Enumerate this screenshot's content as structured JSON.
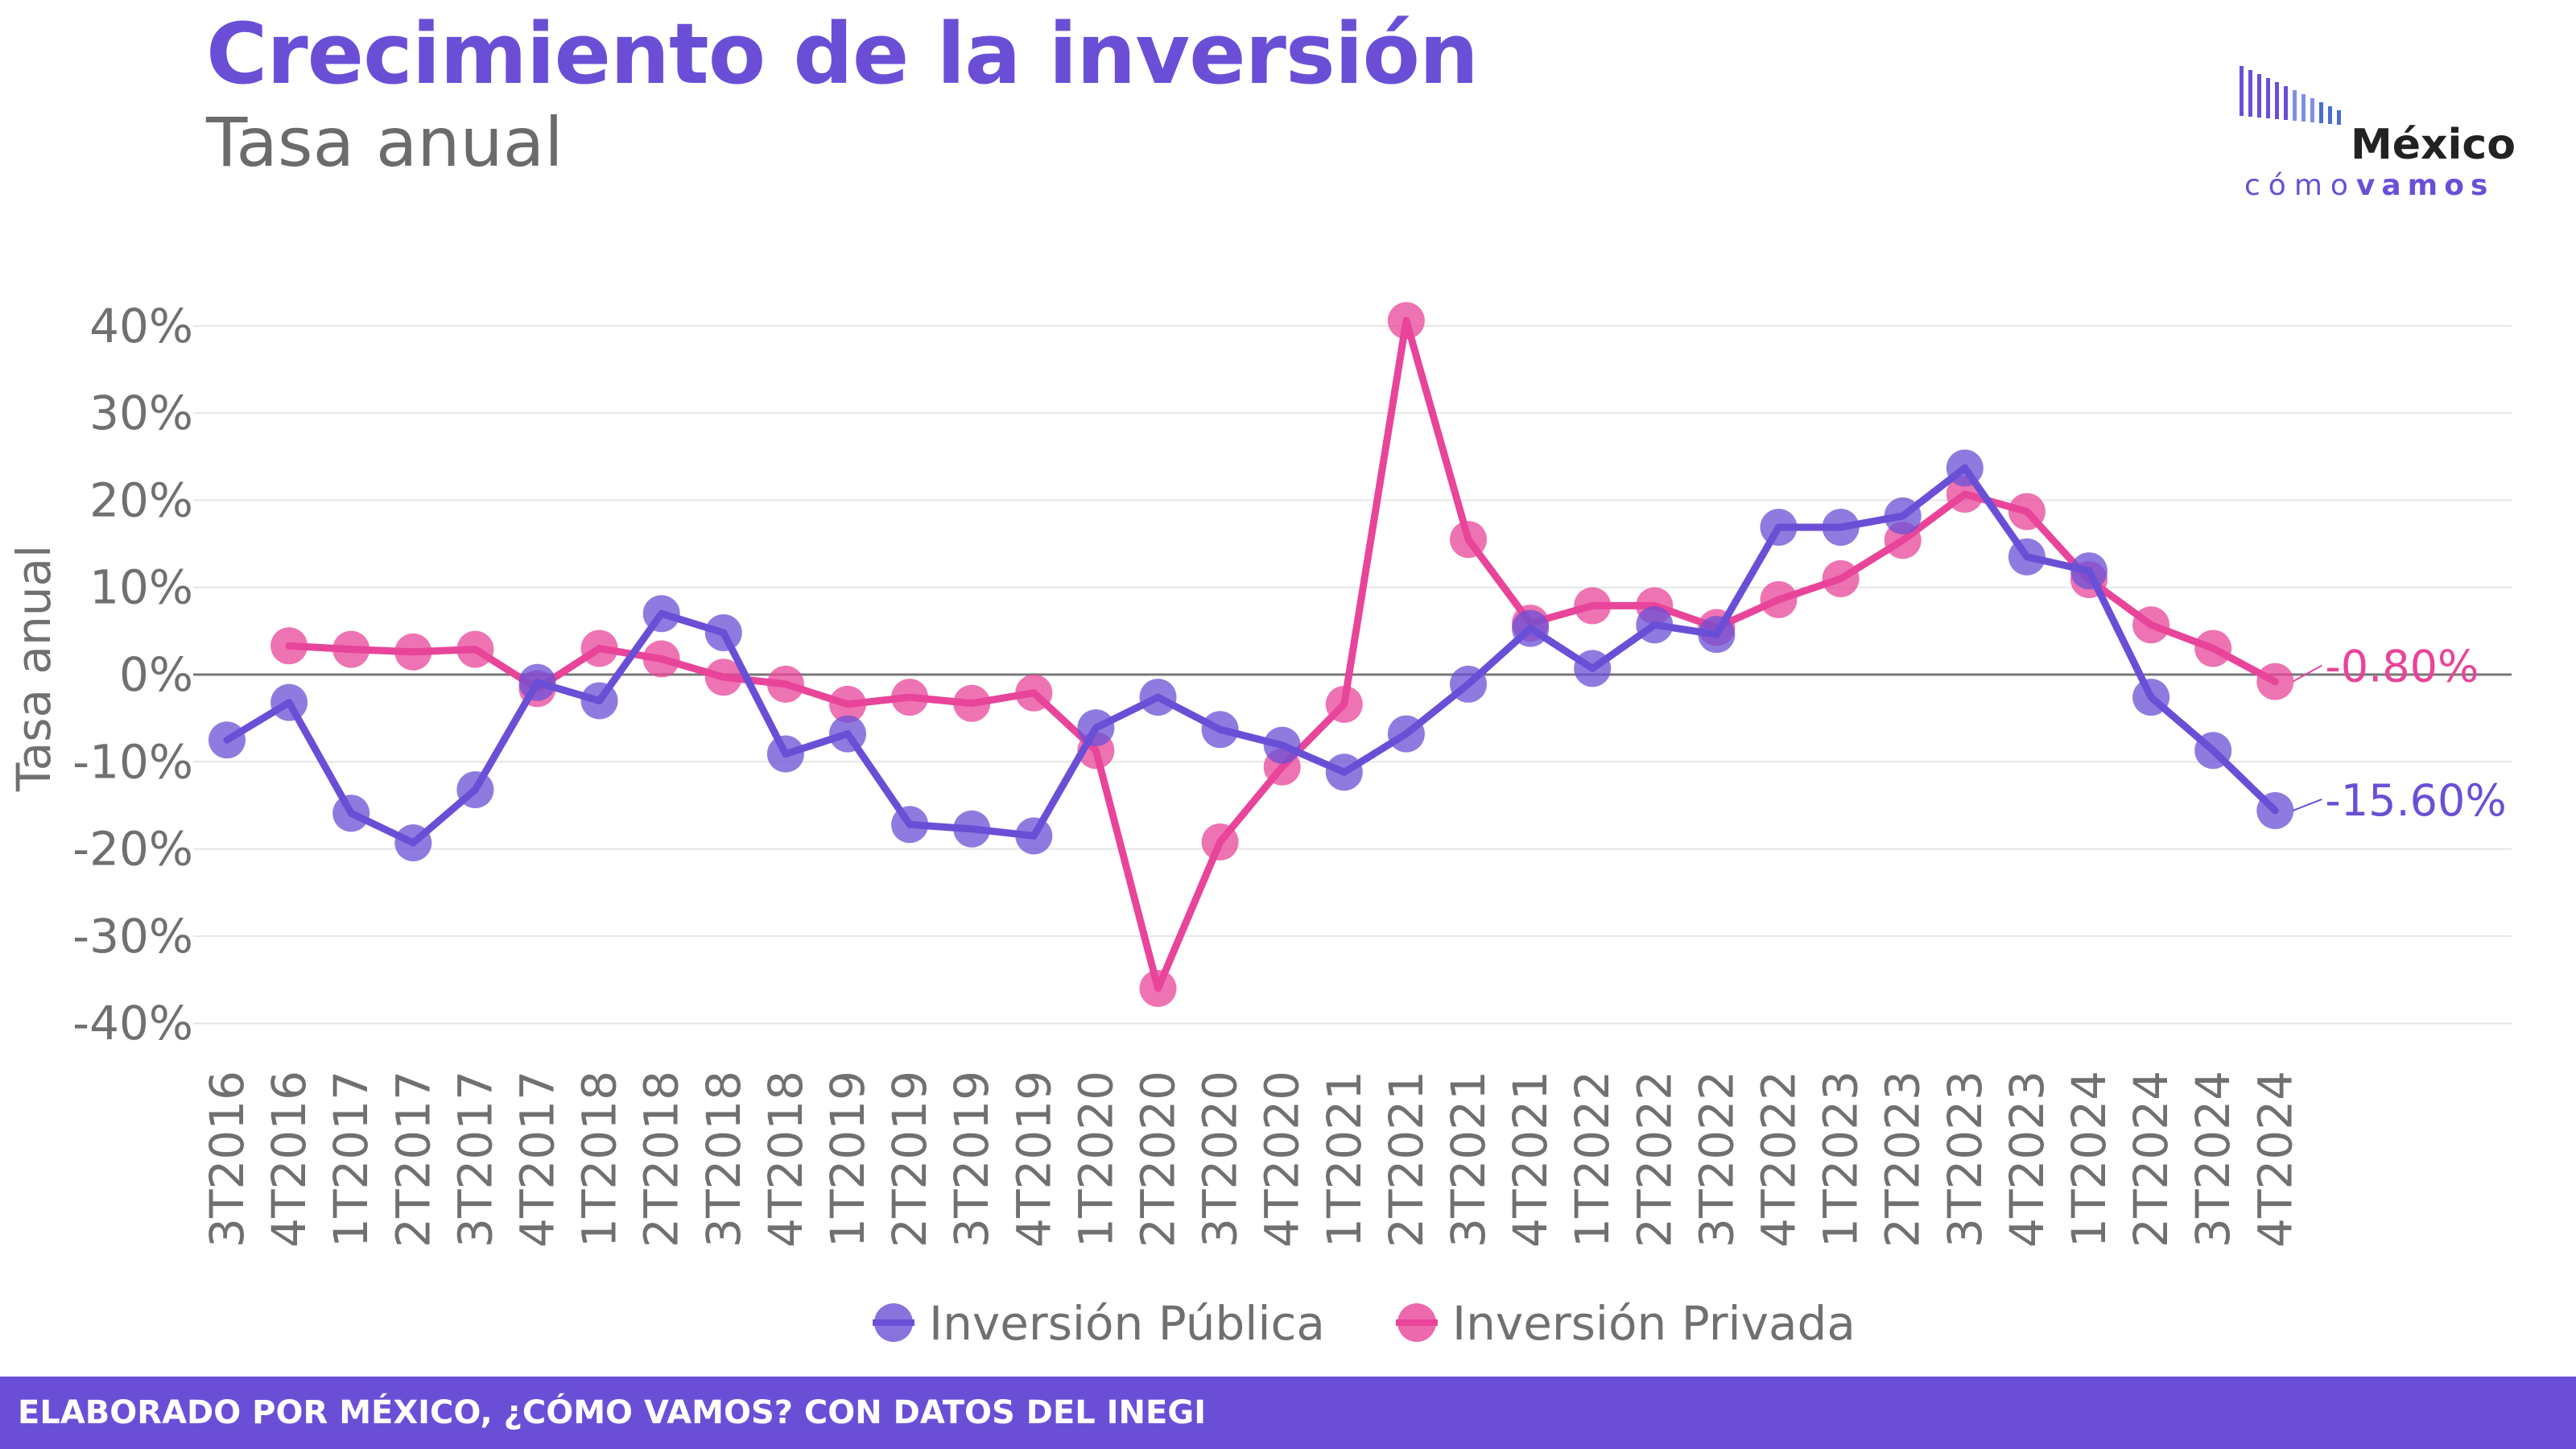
{
  "header": {
    "title": "Crecimiento de la inversión",
    "subtitle": "Tasa anual"
  },
  "logo": {
    "word": "México",
    "sub_light": "cómo",
    "sub_bold": "vamos",
    "icon": "bar-code-logo-icon"
  },
  "footer": {
    "text": "ELABORADO POR MÉXICO, ¿CÓMO VAMOS? CON DATOS DEL INEGI"
  },
  "colors": {
    "accent": "#6a4fd6",
    "publica": "#6a4fd6",
    "privada": "#e8449a",
    "grid": "#e6e6e6",
    "zero_line": "#777777",
    "axis_text": "#707070"
  },
  "chart_data": {
    "type": "line",
    "title": "Crecimiento de la inversión",
    "subtitle": "Tasa anual",
    "xlabel": "",
    "ylabel": "Tasa anual",
    "ylim": [
      -40,
      40
    ],
    "yticks": [
      -40,
      -30,
      -20,
      -10,
      0,
      10,
      20,
      30,
      40
    ],
    "ytick_labels": [
      "-40%",
      "-30%",
      "-20%",
      "-10%",
      "0%",
      "10%",
      "20%",
      "30%",
      "40%"
    ],
    "grid": true,
    "legend": "bottom",
    "categories": [
      "3T2016",
      "4T2016",
      "1T2017",
      "2T2017",
      "3T2017",
      "4T2017",
      "1T2018",
      "2T2018",
      "3T2018",
      "4T2018",
      "1T2019",
      "2T2019",
      "3T2019",
      "4T2019",
      "1T2020",
      "2T2020",
      "3T2020",
      "4T2020",
      "1T2021",
      "2T2021",
      "3T2021",
      "4T2021",
      "1T2022",
      "2T2022",
      "3T2022",
      "4T2022",
      "1T2023",
      "2T2023",
      "3T2023",
      "4T2023",
      "1T2024",
      "2T2024",
      "3T2024",
      "4T2024"
    ],
    "series": [
      {
        "name": "Inversión Pública",
        "color": "#6a4fd6",
        "values": [
          -7.5,
          -3.2,
          -15.9,
          -19.3,
          -13.2,
          -0.9,
          -3.0,
          7.0,
          4.8,
          -9.1,
          -6.8,
          -17.2,
          -17.7,
          -18.5,
          -6.1,
          -2.6,
          -6.3,
          -8.1,
          -11.2,
          -6.8,
          -1.1,
          5.3,
          0.7,
          5.7,
          4.6,
          16.9,
          16.9,
          18.2,
          23.7,
          13.5,
          11.9,
          -2.6,
          -8.7,
          -15.6
        ],
        "end_label": "-15.60%"
      },
      {
        "name": "Inversión Privada",
        "color": "#e8449a",
        "values": [
          null,
          3.3,
          2.9,
          2.6,
          2.9,
          -1.6,
          3.0,
          1.8,
          -0.3,
          -1.1,
          -3.4,
          -2.6,
          -3.3,
          -2.1,
          -8.7,
          -36.0,
          -19.2,
          -10.6,
          -3.4,
          40.6,
          15.5,
          5.9,
          7.9,
          7.9,
          5.4,
          8.6,
          11.0,
          15.4,
          20.7,
          18.7,
          10.9,
          5.7,
          3.0,
          -0.8
        ],
        "end_label": "-0.80%"
      }
    ]
  }
}
